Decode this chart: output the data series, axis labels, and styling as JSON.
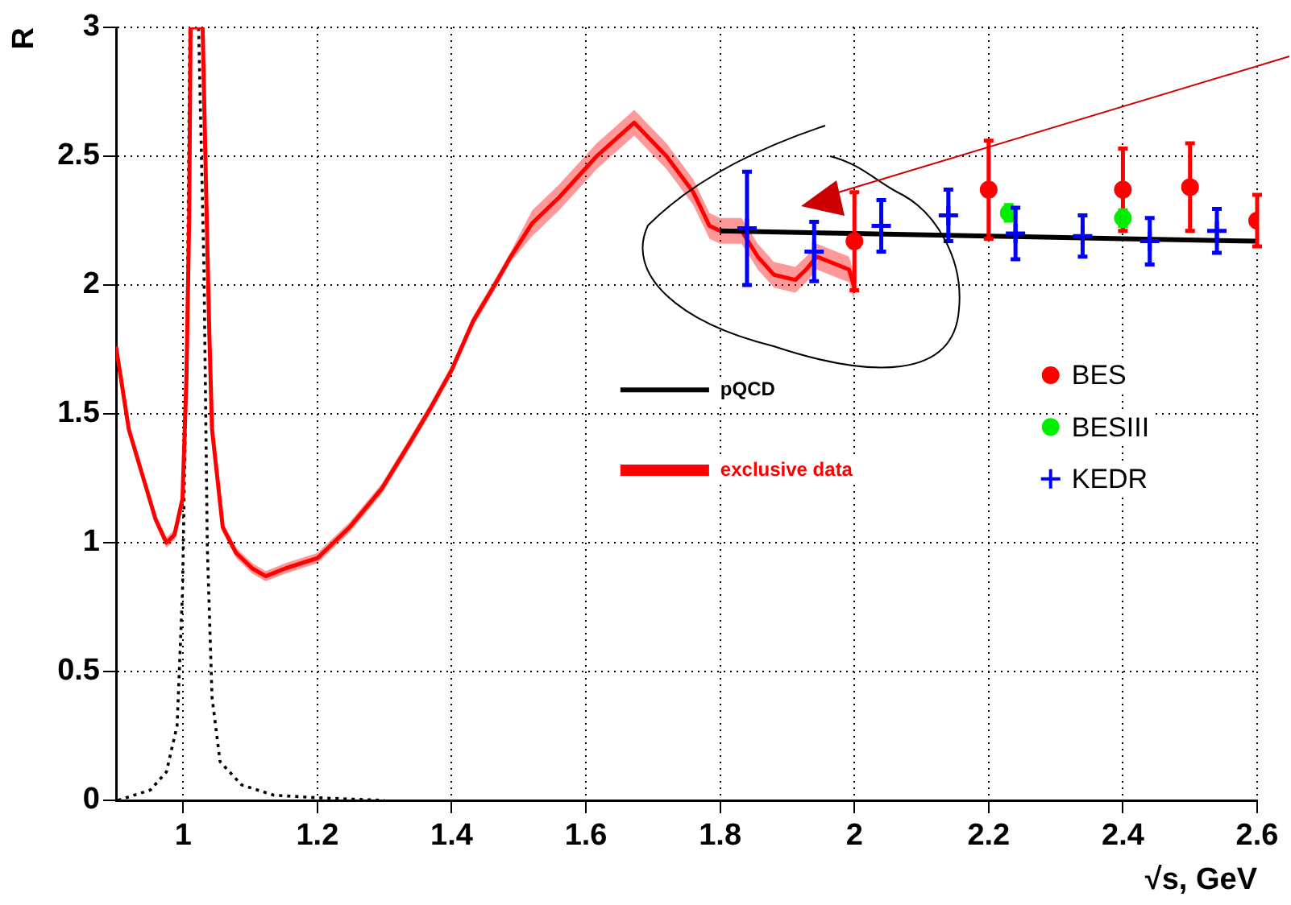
{
  "chart_data": {
    "type": "line",
    "xlabel": "√s, GeV",
    "ylabel": "R",
    "xlim": [
      0.9,
      2.6
    ],
    "xticks": [
      1,
      1.2,
      1.4,
      1.6,
      1.8,
      2,
      2.2,
      2.4,
      2.6
    ],
    "ylim": [
      0,
      3
    ],
    "yticks": [
      0,
      0.5,
      1,
      1.5,
      2,
      2.5,
      3
    ],
    "grid": true,
    "legend": "center",
    "series": [
      {
        "name": "pQCD",
        "color": "#000000",
        "line_style": "solid",
        "x": [
          1.8,
          2.0,
          2.2,
          2.4,
          2.6
        ],
        "values": [
          2.21,
          2.2,
          2.19,
          2.18,
          2.17
        ]
      },
      {
        "name": "exclusive data",
        "color": "#ff0000",
        "line_style": "solid",
        "x": [
          0.9,
          0.919,
          0.943,
          0.959,
          0.975,
          0.987,
          0.999,
          1.005,
          1.009,
          1.011,
          1.029,
          1.035,
          1.039,
          1.043,
          1.059,
          1.079,
          1.103,
          1.123,
          1.152,
          1.2,
          1.248,
          1.296,
          1.336,
          1.368,
          1.4,
          1.432,
          1.464,
          1.488,
          1.52,
          1.56,
          1.616,
          1.672,
          1.72,
          1.76,
          1.784,
          1.8,
          1.832,
          1.856,
          1.88,
          1.912,
          1.928,
          1.944,
          1.992,
          2.0
        ],
        "values": [
          1.76,
          1.44,
          1.23,
          1.09,
          1.0,
          1.03,
          1.17,
          1.65,
          2.27,
          3.0,
          3.0,
          2.27,
          1.81,
          1.44,
          1.06,
          0.96,
          0.9,
          0.87,
          0.9,
          0.94,
          1.06,
          1.21,
          1.38,
          1.52,
          1.67,
          1.86,
          2.0,
          2.11,
          2.24,
          2.34,
          2.5,
          2.63,
          2.5,
          2.36,
          2.23,
          2.21,
          2.21,
          2.11,
          2.04,
          2.02,
          2.06,
          2.11,
          2.06,
          1.99
        ],
        "lower": [
          1.74,
          1.42,
          1.21,
          1.07,
          0.98,
          1.01,
          1.15,
          1.63,
          2.25,
          3.0,
          3.0,
          2.25,
          1.79,
          1.42,
          1.04,
          0.94,
          0.88,
          0.85,
          0.88,
          0.92,
          1.04,
          1.19,
          1.36,
          1.5,
          1.65,
          1.84,
          1.98,
          2.09,
          2.19,
          2.29,
          2.45,
          2.58,
          2.45,
          2.31,
          2.18,
          2.16,
          2.16,
          2.06,
          1.99,
          1.97,
          2.01,
          2.06,
          2.01,
          1.94
        ],
        "upper": [
          1.78,
          1.46,
          1.25,
          1.11,
          1.02,
          1.05,
          1.19,
          1.67,
          2.29,
          3.0,
          3.0,
          2.29,
          1.83,
          1.46,
          1.08,
          0.98,
          0.92,
          0.89,
          0.92,
          0.96,
          1.08,
          1.23,
          1.4,
          1.54,
          1.69,
          1.88,
          2.02,
          2.13,
          2.29,
          2.39,
          2.55,
          2.68,
          2.55,
          2.41,
          2.28,
          2.26,
          2.26,
          2.16,
          2.09,
          2.07,
          2.11,
          2.16,
          2.11,
          2.04
        ]
      },
      {
        "color": "#000000",
        "line_style": "dotted",
        "x": [
          0.903,
          0.951,
          0.975,
          0.991,
          0.999,
          1.006,
          1.01,
          1.023,
          1.031,
          1.036,
          1.043,
          1.055,
          1.087,
          1.135,
          1.2,
          1.3
        ],
        "values": [
          0.0,
          0.04,
          0.11,
          0.29,
          0.81,
          1.86,
          3.0,
          3.0,
          2.06,
          0.98,
          0.4,
          0.15,
          0.06,
          0.02,
          0.01,
          0.0
        ]
      },
      {
        "name": "BES",
        "type": "scatter",
        "color": "#ff0000",
        "marker": "circle",
        "x": [
          2.0,
          2.2,
          2.4,
          2.5,
          2.6
        ],
        "values": [
          2.17,
          2.37,
          2.37,
          2.38,
          2.25
        ],
        "errors": [
          0.19,
          0.19,
          0.16,
          0.17,
          0.1
        ]
      },
      {
        "name": "BESIII",
        "type": "scatter",
        "color": "#00ee00",
        "marker": "circle",
        "x": [
          2.23,
          2.4
        ],
        "values": [
          2.28,
          2.26
        ],
        "errors": [
          0.03,
          0.03
        ]
      },
      {
        "name": "KEDR",
        "type": "scatter",
        "color": "#0000ff",
        "marker": "cross",
        "x": [
          1.84,
          1.94,
          2.04,
          2.14,
          2.24,
          2.34,
          2.44,
          2.54
        ],
        "values": [
          2.22,
          2.13,
          2.23,
          2.27,
          2.2,
          2.19,
          2.17,
          2.21
        ],
        "errors": [
          0.22,
          0.115,
          0.1,
          0.1,
          0.1,
          0.08,
          0.09,
          0.085
        ]
      }
    ]
  }
}
